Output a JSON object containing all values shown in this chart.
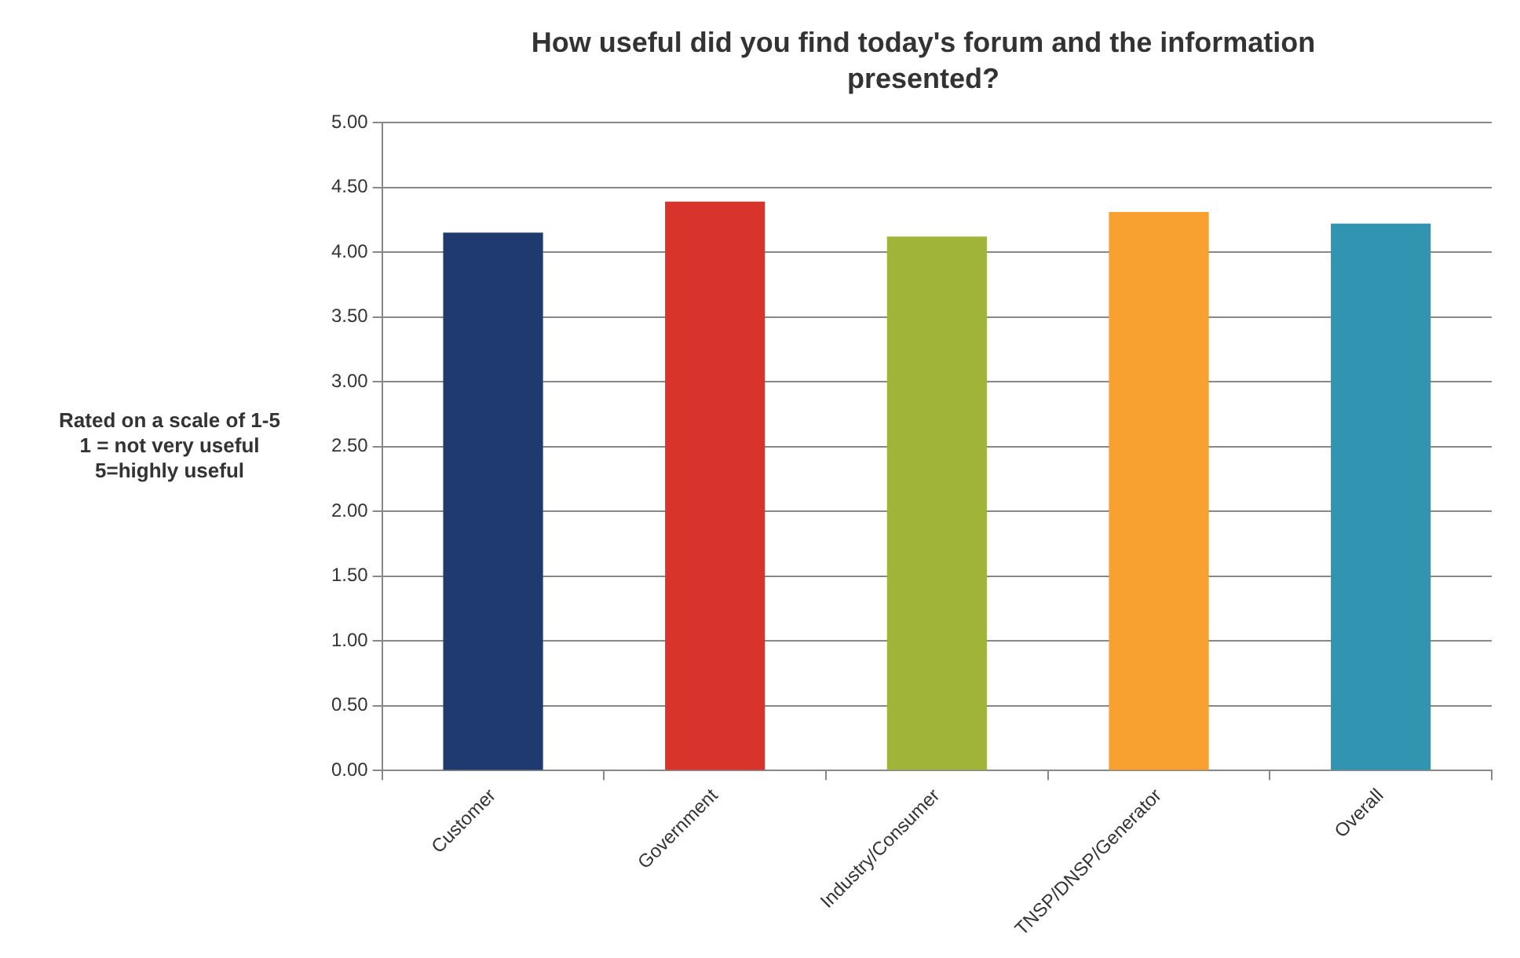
{
  "chart_data": {
    "type": "bar",
    "title": "How useful did you find today's forum and the information presented?",
    "ylabel": "Rated on a scale of 1-5\n1 = not very useful\n5=highly useful",
    "categories": [
      "Customer",
      "Government",
      "Industry/Consumer",
      "TNSP/DNSP/Generator",
      "Overall"
    ],
    "values": [
      4.15,
      4.39,
      4.12,
      4.31,
      4.22
    ],
    "colors": [
      "#1f3a6e",
      "#d9342b",
      "#a1b43a",
      "#f8a030",
      "#3195b2"
    ],
    "ylim": [
      0,
      5
    ],
    "yticks": [
      {
        "value": 0,
        "label": "0.00"
      },
      {
        "value": 0.5,
        "label": "0.50"
      },
      {
        "value": 1,
        "label": "1.00"
      },
      {
        "value": 1.5,
        "label": "1.50"
      },
      {
        "value": 2,
        "label": "2.00"
      },
      {
        "value": 2.5,
        "label": "2.50"
      },
      {
        "value": 3,
        "label": "3.00"
      },
      {
        "value": 3.5,
        "label": "3.50"
      },
      {
        "value": 4,
        "label": "4.00"
      },
      {
        "value": 4.5,
        "label": "4.50"
      },
      {
        "value": 5,
        "label": "5.00"
      }
    ],
    "grid": "y",
    "legend": false
  }
}
